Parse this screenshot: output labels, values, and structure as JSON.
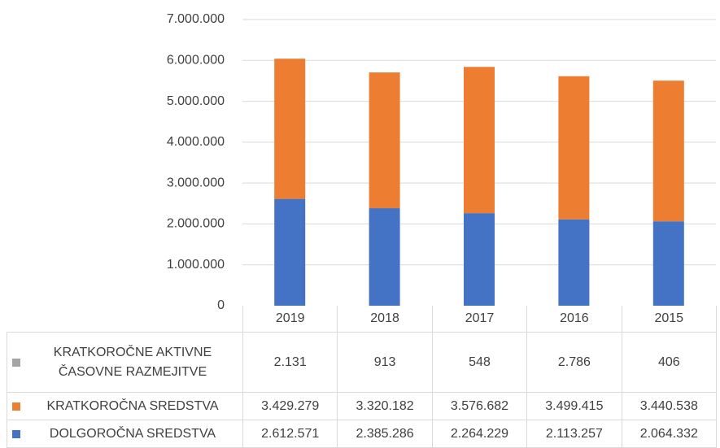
{
  "chart_data": {
    "type": "bar",
    "stacked": true,
    "categories": [
      "2019",
      "2018",
      "2017",
      "2016",
      "2015"
    ],
    "series": [
      {
        "name": "DOLGOROČNA SREDSTVA",
        "color": "#4472c4",
        "values": [
          2612571,
          2385286,
          2264229,
          2113257,
          2064332
        ],
        "value_labels": [
          "2.612.571",
          "2.385.286",
          "2.264.229",
          "2.113.257",
          "2.064.332"
        ]
      },
      {
        "name": "KRATKOROČNA SREDSTVA",
        "color": "#ed7d31",
        "values": [
          3429279,
          3320182,
          3576682,
          3499415,
          3440538
        ],
        "value_labels": [
          "3.429.279",
          "3.320.182",
          "3.576.682",
          "3.499.415",
          "3.440.538"
        ]
      },
      {
        "name": "KRATKOROČNE AKTIVNE ČASOVNE RAZMEJITVE",
        "color": "#a5a5a5",
        "values": [
          2131,
          913,
          548,
          2786,
          406
        ],
        "value_labels": [
          "2.131",
          "913",
          "548",
          "2.786",
          "406"
        ]
      }
    ],
    "ylim": [
      0,
      7000000
    ],
    "yticks": [
      0,
      {
        "value": 1000000,
        "label": "1.000.000"
      },
      {
        "value": 2000000,
        "label": "2.000.000"
      },
      {
        "value": 3000000,
        "label": "3.000.000"
      },
      {
        "value": 4000000,
        "label": "4.000.000"
      },
      {
        "value": 5000000,
        "label": "5.000.000"
      },
      {
        "value": 6000000,
        "label": "6.000.000"
      },
      {
        "value": 7000000,
        "label": "7.000.000"
      }
    ],
    "grid": true,
    "legend": "table"
  }
}
